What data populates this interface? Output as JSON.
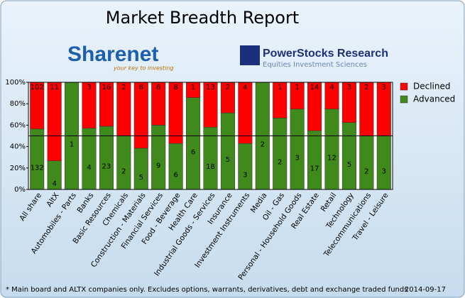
{
  "chart_data": {
    "type": "stacked_percent_bar",
    "title": "Market Breadth Report",
    "logos": {
      "sharenet": "Sharenet",
      "sharenet_tagline": "your key to investing",
      "powerstocks": "PowerStocks Research",
      "powerstocks_tagline": "Equities Investment Sciences"
    },
    "categories": [
      "All share",
      "AltX",
      "Automobiles - Parts",
      "Banks",
      "Basic Resources",
      "Chemicals",
      "Construction - Materials",
      "Financial Services",
      "Food - Beverage",
      "Health Care",
      "Industrial Goods - Services",
      "Insurance",
      "Investment Instruments",
      "Media",
      "Oil - Gas",
      "Personal - Household Goods",
      "Real Estate",
      "Retail",
      "Technology",
      "Telecommunications",
      "Travel - Leisure"
    ],
    "series": [
      {
        "name": "Advanced",
        "color": "#3f8a1a",
        "values": [
          132,
          4,
          1,
          4,
          23,
          2,
          5,
          9,
          6,
          6,
          18,
          5,
          3,
          2,
          2,
          3,
          17,
          12,
          5,
          2,
          3
        ]
      },
      {
        "name": "Declined",
        "color": "#ff0000",
        "values": [
          102,
          11,
          0,
          3,
          16,
          2,
          8,
          6,
          8,
          1,
          13,
          2,
          4,
          0,
          1,
          1,
          14,
          4,
          3,
          2,
          3
        ]
      }
    ],
    "ylim": [
      0,
      100
    ],
    "yticks": [
      {
        "value": 0,
        "label": "0%"
      },
      {
        "value": 20,
        "label": "20%"
      },
      {
        "value": 40,
        "label": "40%"
      },
      {
        "value": 60,
        "label": "60%"
      },
      {
        "value": 80,
        "label": "80%"
      },
      {
        "value": 100,
        "label": "100%"
      }
    ],
    "reference_line": 50,
    "footnote": "* Main board and ALTX companies only. Excludes options, warrants, derivatives, debt and exchange traded funds",
    "date": "2014-09-17"
  }
}
